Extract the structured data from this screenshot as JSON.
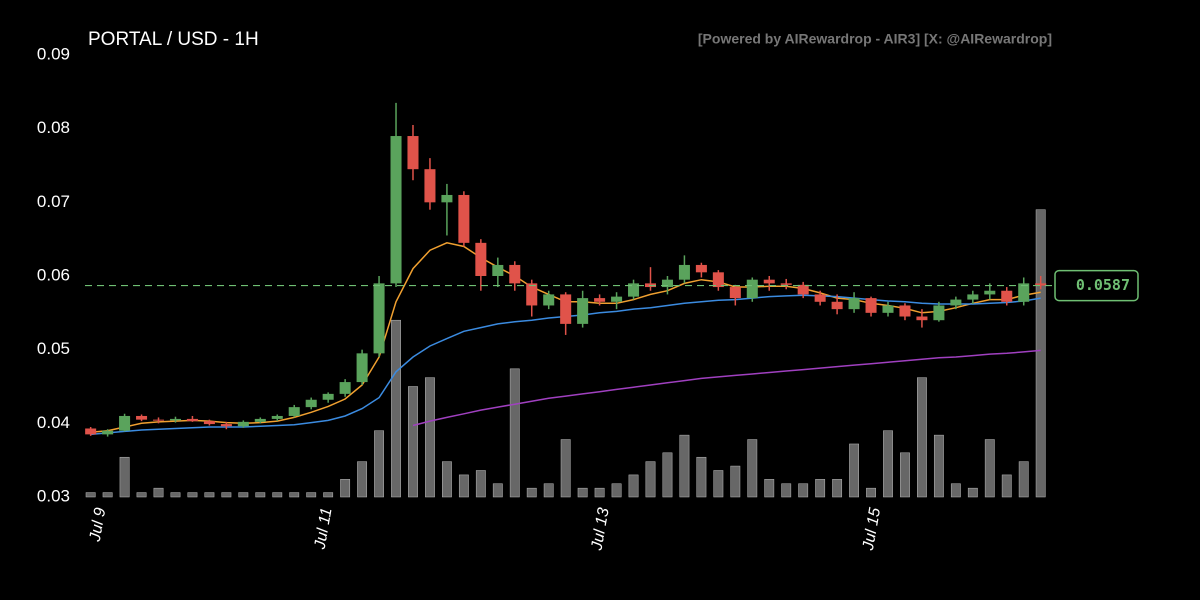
{
  "chart_data": {
    "type": "candlestick",
    "title": "PORTAL / USD - 1H",
    "subtitle": "[Powered by AIRewardrop - AIR3] [X: @AIRewardrop]",
    "x": [
      0,
      3,
      6,
      9,
      12,
      15,
      18,
      21,
      24,
      27,
      30,
      33,
      36,
      39,
      42,
      45,
      48,
      51,
      54,
      57,
      60,
      63,
      66,
      69,
      72,
      75,
      78,
      81,
      84,
      87,
      90,
      93,
      96,
      99,
      102,
      105,
      108,
      111,
      114,
      117,
      120,
      123,
      126,
      129,
      132,
      135,
      138,
      141,
      144,
      147,
      150,
      153,
      156,
      159,
      162,
      165,
      168
    ],
    "open": [
      0.0393,
      0.0385,
      0.039,
      0.041,
      0.0405,
      0.0404,
      0.0406,
      0.0403,
      0.0399,
      0.0396,
      0.0402,
      0.0406,
      0.041,
      0.0422,
      0.0432,
      0.044,
      0.0456,
      0.0495,
      0.059,
      0.079,
      0.0745,
      0.07,
      0.071,
      0.0645,
      0.06,
      0.0615,
      0.059,
      0.056,
      0.0575,
      0.0535,
      0.057,
      0.0565,
      0.0572,
      0.059,
      0.0585,
      0.0595,
      0.0615,
      0.0605,
      0.0585,
      0.057,
      0.0595,
      0.059,
      0.0588,
      0.0575,
      0.0565,
      0.0555,
      0.057,
      0.055,
      0.056,
      0.0545,
      0.054,
      0.056,
      0.0568,
      0.0575,
      0.058,
      0.0565,
      0.059
    ],
    "high": [
      0.0395,
      0.0392,
      0.0413,
      0.0412,
      0.0408,
      0.0409,
      0.041,
      0.0405,
      0.0402,
      0.0404,
      0.0408,
      0.0412,
      0.0425,
      0.0435,
      0.0442,
      0.046,
      0.05,
      0.06,
      0.0835,
      0.0805,
      0.076,
      0.0725,
      0.0715,
      0.065,
      0.0625,
      0.062,
      0.0595,
      0.058,
      0.0578,
      0.058,
      0.0575,
      0.0578,
      0.0595,
      0.0612,
      0.06,
      0.0628,
      0.0618,
      0.0608,
      0.0588,
      0.0598,
      0.06,
      0.0596,
      0.0592,
      0.058,
      0.0575,
      0.0578,
      0.0572,
      0.0565,
      0.0563,
      0.0555,
      0.0565,
      0.0572,
      0.058,
      0.059,
      0.0585,
      0.0598,
      0.06
    ],
    "low": [
      0.0383,
      0.0382,
      0.0389,
      0.0403,
      0.04,
      0.0401,
      0.0402,
      0.0397,
      0.0392,
      0.0394,
      0.04,
      0.0403,
      0.0408,
      0.0419,
      0.0428,
      0.0436,
      0.0452,
      0.049,
      0.0585,
      0.073,
      0.069,
      0.0655,
      0.064,
      0.058,
      0.0585,
      0.058,
      0.0545,
      0.0555,
      0.052,
      0.053,
      0.056,
      0.0555,
      0.0568,
      0.058,
      0.0575,
      0.059,
      0.0598,
      0.058,
      0.056,
      0.0565,
      0.058,
      0.0582,
      0.057,
      0.056,
      0.0548,
      0.055,
      0.0545,
      0.0545,
      0.054,
      0.053,
      0.0538,
      0.0555,
      0.0562,
      0.0568,
      0.056,
      0.056,
      0.0582
    ],
    "close": [
      0.0385,
      0.039,
      0.041,
      0.0405,
      0.0404,
      0.0406,
      0.0403,
      0.0399,
      0.0396,
      0.0402,
      0.0406,
      0.041,
      0.0422,
      0.0432,
      0.044,
      0.0456,
      0.0495,
      0.059,
      0.079,
      0.0745,
      0.07,
      0.071,
      0.0645,
      0.06,
      0.0615,
      0.059,
      0.056,
      0.0575,
      0.0535,
      0.057,
      0.0565,
      0.0572,
      0.059,
      0.0585,
      0.0595,
      0.0615,
      0.0605,
      0.0585,
      0.057,
      0.0595,
      0.059,
      0.0588,
      0.0575,
      0.0565,
      0.0555,
      0.057,
      0.055,
      0.056,
      0.0545,
      0.054,
      0.056,
      0.0568,
      0.0575,
      0.058,
      0.0565,
      0.059,
      0.0587
    ],
    "volume": [
      1,
      1,
      9,
      1,
      2,
      1,
      1,
      1,
      1,
      1,
      1,
      1,
      1,
      1,
      1,
      4,
      8,
      15,
      40,
      25,
      27,
      8,
      5,
      6,
      3,
      29,
      2,
      3,
      13,
      2,
      2,
      3,
      5,
      8,
      10,
      14,
      9,
      6,
      7,
      13,
      4,
      3,
      3,
      4,
      4,
      12,
      2,
      15,
      10,
      27,
      14,
      3,
      2,
      13,
      5,
      8,
      65
    ],
    "volume_axis": "y2",
    "y2lim": [
      0,
      100
    ],
    "up_color": "#5aa35c",
    "down_color": "#e0534a",
    "volume_color": "#8a8a8a",
    "series": [
      {
        "color": "#f0a030",
        "values": [
          0.0388,
          0.039,
          0.0395,
          0.04,
          0.0402,
          0.0403,
          0.0404,
          0.0403,
          0.0401,
          0.04,
          0.0401,
          0.0403,
          0.0408,
          0.0415,
          0.0423,
          0.0433,
          0.0452,
          0.049,
          0.0565,
          0.061,
          0.0635,
          0.0645,
          0.064,
          0.0625,
          0.0612,
          0.06,
          0.0585,
          0.0575,
          0.0565,
          0.0565,
          0.0563,
          0.0563,
          0.0568,
          0.0575,
          0.058,
          0.059,
          0.0595,
          0.0592,
          0.0585,
          0.0585,
          0.0586,
          0.0586,
          0.0583,
          0.0577,
          0.057,
          0.0568,
          0.0563,
          0.056,
          0.0556,
          0.055,
          0.0552,
          0.0557,
          0.0563,
          0.0568,
          0.0568,
          0.0574,
          0.0578
        ]
      },
      {
        "color": "#3b8be0",
        "values": [
          0.0385,
          0.0387,
          0.0389,
          0.0391,
          0.0392,
          0.0393,
          0.0394,
          0.0395,
          0.0395,
          0.0395,
          0.0396,
          0.0397,
          0.0398,
          0.0401,
          0.0404,
          0.041,
          0.042,
          0.0435,
          0.047,
          0.049,
          0.0505,
          0.0515,
          0.0525,
          0.053,
          0.0535,
          0.0538,
          0.054,
          0.0543,
          0.0545,
          0.0547,
          0.055,
          0.0552,
          0.0555,
          0.0557,
          0.056,
          0.0563,
          0.0565,
          0.0567,
          0.0568,
          0.057,
          0.0572,
          0.0573,
          0.0574,
          0.0573,
          0.0572,
          0.057,
          0.0568,
          0.0566,
          0.0565,
          0.0563,
          0.0562,
          0.0562,
          0.0562,
          0.0563,
          0.0564,
          0.0566,
          0.057
        ]
      },
      {
        "color": "#a040c0",
        "values": [
          null,
          null,
          null,
          null,
          null,
          null,
          null,
          null,
          null,
          null,
          null,
          null,
          null,
          null,
          null,
          null,
          null,
          null,
          null,
          0.0397,
          0.0403,
          0.0408,
          0.0413,
          0.0418,
          0.0422,
          0.0426,
          0.043,
          0.0434,
          0.0437,
          0.044,
          0.0443,
          0.0446,
          0.0449,
          0.0452,
          0.0455,
          0.0458,
          0.0461,
          0.0463,
          0.0465,
          0.0467,
          0.0469,
          0.0471,
          0.0473,
          0.0475,
          0.0477,
          0.0479,
          0.0481,
          0.0483,
          0.0485,
          0.0487,
          0.0489,
          0.049,
          0.0492,
          0.0494,
          0.0495,
          0.0497,
          0.0499
        ]
      }
    ],
    "last_price": 0.0587,
    "last_price_color": "#6fbf73",
    "ylim": [
      0.03,
      0.09
    ],
    "yticks": [
      0.03,
      0.04,
      0.05,
      0.06,
      0.07,
      0.08,
      0.09
    ],
    "xlim": [
      -1,
      170
    ],
    "xticks": [
      {
        "value": 1,
        "label": "Jul 9"
      },
      {
        "value": 41,
        "label": "Jul 11"
      },
      {
        "value": 90,
        "label": "Jul 13"
      },
      {
        "value": 138,
        "label": "Jul 15"
      }
    ]
  }
}
